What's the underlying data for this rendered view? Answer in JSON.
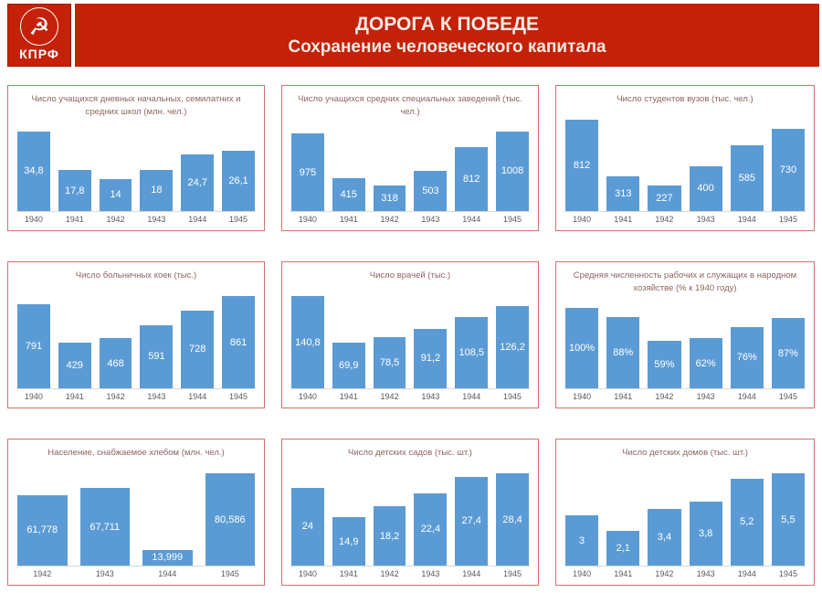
{
  "header": {
    "title": "ДОРОГА К ПОБЕДЕ",
    "subtitle": "Сохранение человеческого капитала",
    "logo_text": "КПРФ",
    "logo_emblem": "hammer-and-sickle"
  },
  "colors": {
    "header_bg": "#c42108",
    "header_text": "#f4eae3",
    "bar_fill": "#5b9bd5",
    "bar_label": "#ffffff",
    "card_border": "#d0736b",
    "chart_title": "#8e655e",
    "axis_line": "#d9d9d9",
    "year_label": "#595959"
  },
  "chart_data": [
    {
      "type": "bar",
      "title": "Число учащихся дневных начальных, семилатних и средних школ (млн. чел.)",
      "categories": [
        "1940",
        "1941",
        "1942",
        "1943",
        "1944",
        "1945"
      ],
      "values": [
        34.8,
        17.8,
        14,
        18,
        24.7,
        26.1
      ],
      "labels": [
        "34,8",
        "17,8",
        "14",
        "18",
        "24,7",
        "26,1"
      ]
    },
    {
      "type": "bar",
      "title": "Число учащихся средних специальных заведений (тыс. чел.)",
      "categories": [
        "1940",
        "1941",
        "1942",
        "1943",
        "1944",
        "1945"
      ],
      "values": [
        975,
        415,
        318,
        503,
        812,
        1008
      ],
      "labels": [
        "975",
        "415",
        "318",
        "503",
        "812",
        "1008"
      ]
    },
    {
      "type": "bar",
      "title": "Число студентов вузов (тыс. чел.)",
      "categories": [
        "1940",
        "1941",
        "1942",
        "1943",
        "1944",
        "1945"
      ],
      "values": [
        812,
        313,
        227,
        400,
        585,
        730
      ],
      "labels": [
        "812",
        "313",
        "227",
        "400",
        "585",
        "730"
      ]
    },
    {
      "type": "bar",
      "title": "Число больничных коек (тыс.)",
      "categories": [
        "1940",
        "1941",
        "1942",
        "1943",
        "1944",
        "1945"
      ],
      "values": [
        791,
        429,
        468,
        591,
        728,
        861
      ],
      "labels": [
        "791",
        "429",
        "468",
        "591",
        "728",
        "861"
      ]
    },
    {
      "type": "bar",
      "title": "Число врачей (тыс.)",
      "categories": [
        "1940",
        "1941",
        "1942",
        "1943",
        "1944",
        "1945"
      ],
      "values": [
        140.8,
        69.9,
        78.5,
        91.2,
        108.5,
        126.2
      ],
      "labels": [
        "140,8",
        "69,9",
        "78,5",
        "91,2",
        "108,5",
        "126,2"
      ]
    },
    {
      "type": "bar",
      "title": "Средняя численность рабочих и служащих в народном хозяйстве (% к 1940 году)",
      "categories": [
        "1940",
        "1941",
        "1942",
        "1943",
        "1944",
        "1945"
      ],
      "values": [
        100,
        88,
        59,
        62,
        76,
        87
      ],
      "labels": [
        "100%",
        "88%",
        "59%",
        "62%",
        "76%",
        "87%"
      ]
    },
    {
      "type": "bar",
      "title": "Население, снабжаемое хлебом (млн. чел.)",
      "categories": [
        "1942",
        "1943",
        "1944",
        "1945"
      ],
      "values": [
        61.778,
        67.711,
        13.999,
        80.586
      ],
      "labels": [
        "61,778",
        "67,711",
        "13,999",
        "80,586"
      ]
    },
    {
      "type": "bar",
      "title": "Число детских садов (тыс. шт.)",
      "categories": [
        "1940",
        "1941",
        "1942",
        "1943",
        "1944",
        "1945"
      ],
      "values": [
        24,
        14.9,
        18.2,
        22.4,
        27.4,
        28.4
      ],
      "labels": [
        "24",
        "14,9",
        "18,2",
        "22,4",
        "27,4",
        "28,4"
      ]
    },
    {
      "type": "bar",
      "title": "Число детских домов (тыс. шт.)",
      "categories": [
        "1940",
        "1941",
        "1942",
        "1943",
        "1944",
        "1945"
      ],
      "values": [
        3,
        2.1,
        3.4,
        3.8,
        5.2,
        5.5
      ],
      "labels": [
        "3",
        "2,1",
        "3,4",
        "3,8",
        "5,2",
        "5,5"
      ]
    }
  ]
}
